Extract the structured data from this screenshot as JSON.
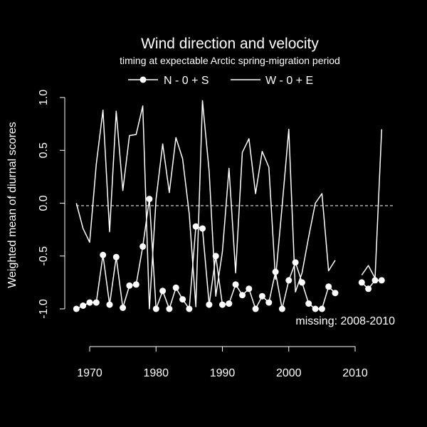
{
  "chart_data": {
    "type": "line",
    "title": "Wind direction and velocity",
    "subtitle": "timing at expectable Arctic spring-migration period",
    "xlabel": "",
    "ylabel": "Weighted mean of diurnal scores",
    "xlim": [
      1968,
      2014
    ],
    "ylim": [
      -1.0,
      1.0
    ],
    "xticks": [
      "1970",
      "1980",
      "1990",
      "2000",
      "2010"
    ],
    "yticks": [
      "-1.0",
      "-0.5",
      "0.0",
      "0.5",
      "1.0"
    ],
    "reference_line": 0,
    "annotation": "missing: 2008-2010",
    "legend_position": "top",
    "colors": {
      "background": "#000000",
      "foreground": "#ffffff"
    },
    "series": [
      {
        "name": "N - 0 + S",
        "marker": "circle",
        "x": [
          1968,
          1969,
          1970,
          1971,
          1972,
          1973,
          1974,
          1975,
          1976,
          1977,
          1978,
          1979,
          1980,
          1981,
          1982,
          1983,
          1984,
          1985,
          1986,
          1987,
          1988,
          1989,
          1990,
          1991,
          1992,
          1993,
          1994,
          1995,
          1996,
          1997,
          1998,
          1999,
          2000,
          2001,
          2002,
          2003,
          2004,
          2005,
          2006,
          2007,
          2011,
          2012,
          2013,
          2014
        ],
        "values": [
          -1.0,
          -0.97,
          -0.94,
          -0.94,
          -0.49,
          -0.96,
          -0.51,
          -0.99,
          -0.78,
          -0.77,
          -0.41,
          0.04,
          -1.0,
          -0.83,
          -1.0,
          -0.8,
          -0.91,
          -1.0,
          -0.22,
          -0.24,
          -0.96,
          -0.5,
          -0.96,
          -0.95,
          -0.77,
          -0.87,
          -0.81,
          -1.0,
          -0.88,
          -0.94,
          -0.65,
          -1.0,
          -0.73,
          -0.56,
          -0.75,
          -0.95,
          -1.0,
          -1.0,
          -0.79,
          -0.85,
          -0.75,
          -0.81,
          -0.73,
          -0.73
        ]
      },
      {
        "name": "W - 0 + E",
        "marker": "none",
        "x": [
          1968,
          1969,
          1970,
          1971,
          1972,
          1973,
          1974,
          1975,
          1976,
          1977,
          1978,
          1979,
          1980,
          1981,
          1982,
          1983,
          1984,
          1985,
          1986,
          1987,
          1988,
          1989,
          1990,
          1991,
          1992,
          1993,
          1994,
          1995,
          1996,
          1997,
          1998,
          1999,
          2000,
          2001,
          2002,
          2003,
          2004,
          2005,
          2006,
          2007,
          2011,
          2012,
          2013,
          2014
        ],
        "values": [
          0.0,
          -0.24,
          -0.37,
          0.37,
          0.88,
          -0.27,
          0.87,
          0.12,
          0.64,
          0.65,
          0.92,
          -1.0,
          0.04,
          0.56,
          0.1,
          0.62,
          0.42,
          -0.1,
          -0.98,
          0.97,
          0.3,
          -0.88,
          -0.46,
          0.33,
          -0.66,
          0.48,
          0.61,
          0.09,
          0.49,
          0.34,
          -0.72,
          -0.03,
          0.7,
          -0.84,
          -0.66,
          -0.32,
          0.0,
          0.09,
          -0.64,
          -0.54,
          -0.68,
          -0.59,
          -0.71,
          0.7
        ]
      }
    ]
  }
}
